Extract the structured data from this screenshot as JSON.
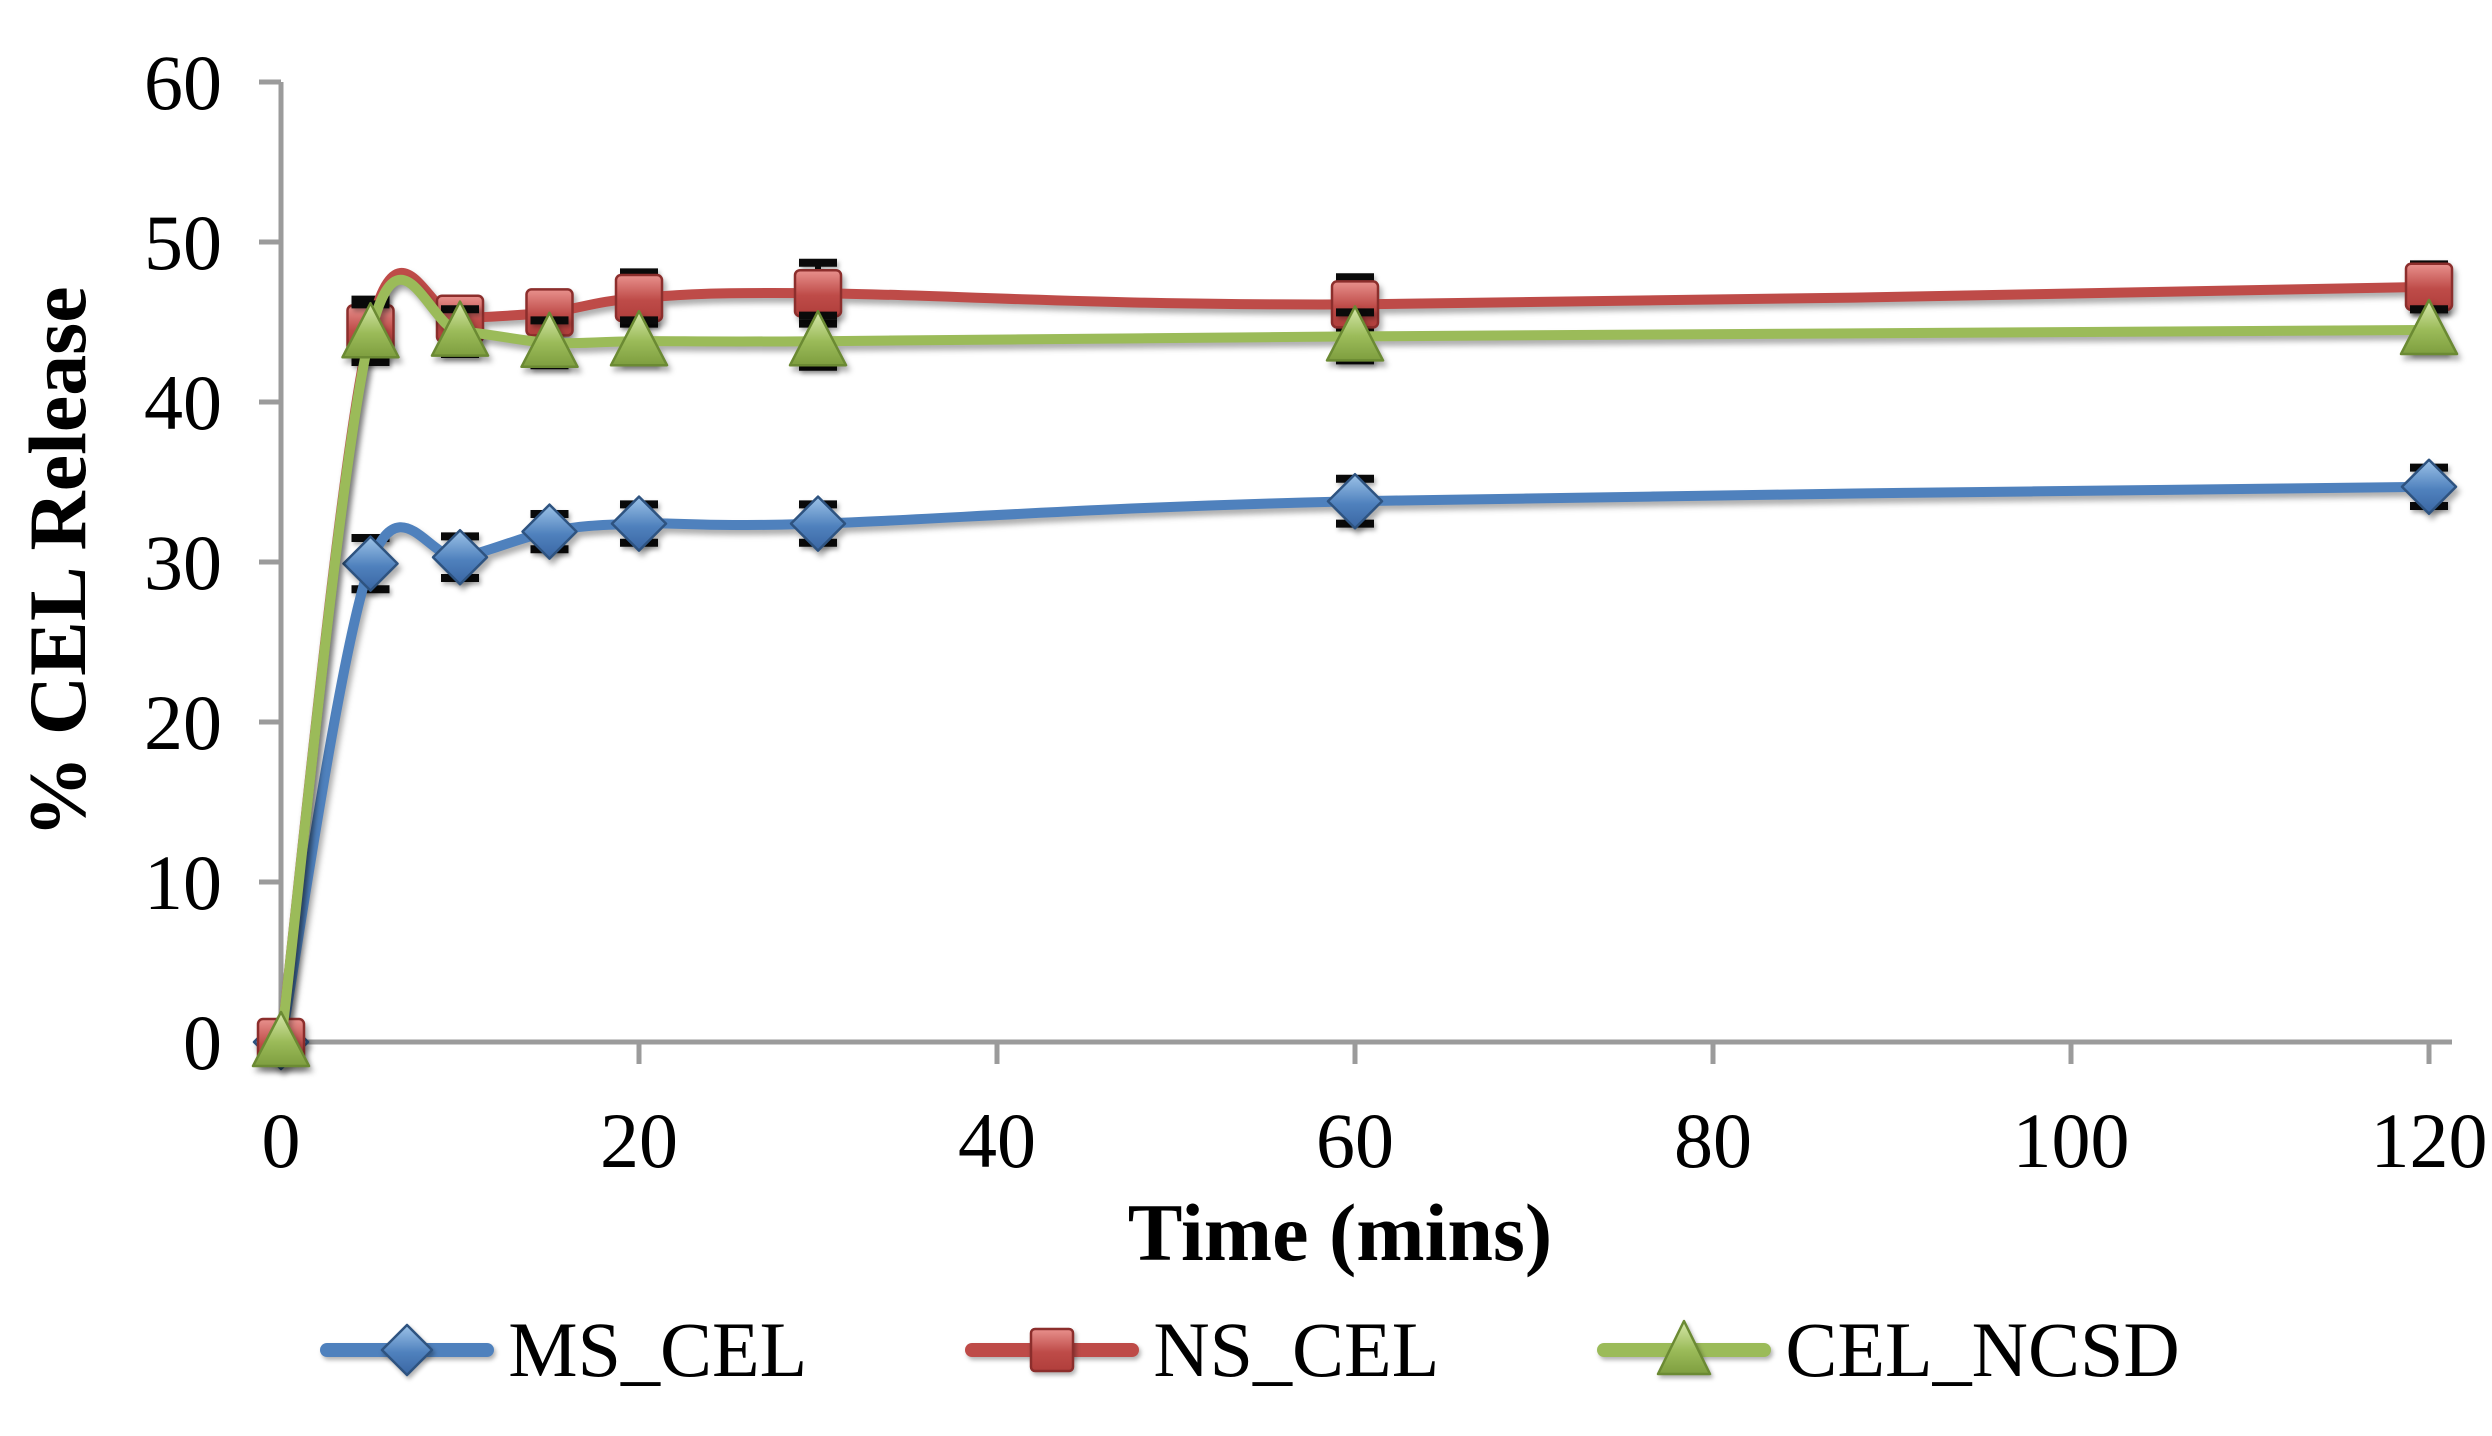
{
  "chart_data": {
    "type": "line",
    "title": "",
    "xlabel": "Time (mins)",
    "ylabel": "% CEL Release",
    "x": [
      0,
      5,
      10,
      15,
      20,
      30,
      60,
      120
    ],
    "x_ticks": [
      0,
      20,
      40,
      60,
      80,
      100,
      120
    ],
    "y_ticks": [
      0,
      10,
      20,
      30,
      40,
      50,
      60
    ],
    "xlim": [
      0,
      120
    ],
    "ylim": [
      0,
      60
    ],
    "grid": false,
    "smooth_lines": true,
    "error_bars": true,
    "legend_position": "bottom",
    "axis_color": "#9B9B9B",
    "error_bar_color": "#0A0A0A",
    "series": [
      {
        "name": "MS_CEL",
        "marker": "diamond",
        "color": "#4F81BD",
        "marker_fill_light": "#9DC3E8",
        "marker_fill_dark": "#3A66A3",
        "marker_border": "#2E5380",
        "values": [
          0,
          29.9,
          30.3,
          31.9,
          32.4,
          32.4,
          33.8,
          34.7
        ],
        "errors": [
          0,
          1.6,
          1.3,
          1.1,
          1.2,
          1.2,
          1.4,
          1.2
        ]
      },
      {
        "name": "NS_CEL",
        "marker": "square",
        "color": "#BE4B48",
        "marker_fill_light": "#E8918D",
        "marker_fill_dark": "#B03E3B",
        "marker_border": "#8C2E2C",
        "values": [
          0,
          44.6,
          45.2,
          45.6,
          46.5,
          46.8,
          46.1,
          47.2
        ],
        "errors": [
          0,
          1.8,
          1.2,
          1.2,
          1.6,
          1.9,
          1.7,
          1.4
        ]
      },
      {
        "name": "CEL_NCSD",
        "marker": "triangle",
        "color": "#9BBB59",
        "marker_fill_light": "#D7E8AC",
        "marker_fill_dark": "#7E9E3F",
        "marker_border": "#6B8A33",
        "values": [
          0,
          44.3,
          44.4,
          43.7,
          43.8,
          43.8,
          44.1,
          44.5
        ],
        "errors": [
          0,
          1.8,
          1.4,
          1.4,
          1.3,
          1.6,
          1.5,
          1.3
        ]
      }
    ]
  }
}
